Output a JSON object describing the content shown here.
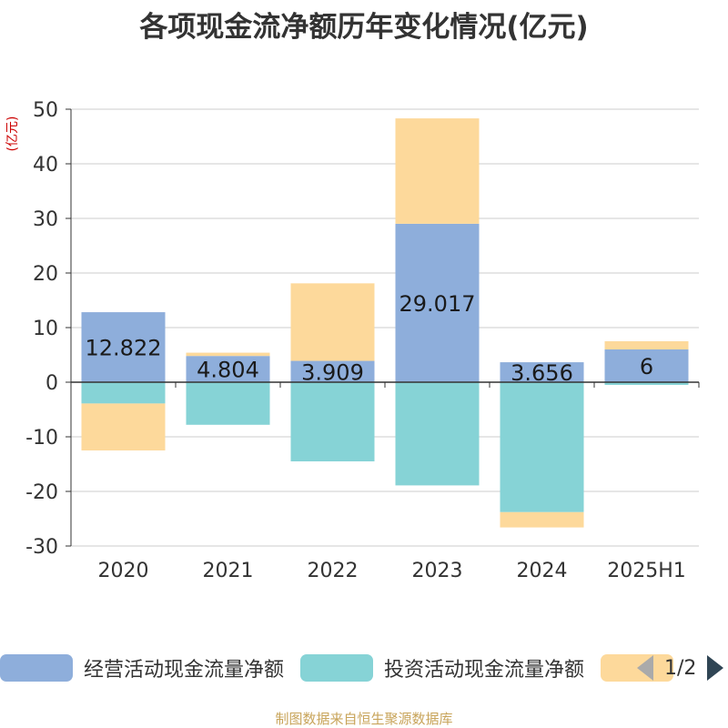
{
  "title": "各项现金流净额历年变化情况(亿元)",
  "unit_label": "(亿元)",
  "legend": {
    "items": [
      {
        "label": "经营活动现金流量净额",
        "color": "#8eaedb"
      },
      {
        "label": "投资活动现金流量净额",
        "color": "#86d3d6"
      },
      {
        "label": "",
        "color": "#fdd99b"
      }
    ],
    "page": "1/2"
  },
  "source": "制图数据来自恒生聚源数据库",
  "chart_data": {
    "type": "bar",
    "stacked": true,
    "categories": [
      "2020",
      "2021",
      "2022",
      "2023",
      "2024",
      "2025H1"
    ],
    "series": [
      {
        "name": "经营活动现金流量净额",
        "color": "#8eaedb",
        "values": [
          12.822,
          4.804,
          3.909,
          29.017,
          3.656,
          6
        ],
        "labels": [
          "12.822",
          "4.804",
          "3.909",
          "29.017",
          "3.656",
          "6"
        ]
      },
      {
        "name": "投资活动现金流量净额",
        "color": "#86d3d6",
        "values": [
          -3.9,
          -7.8,
          -14.5,
          -18.9,
          -23.8,
          -0.5
        ]
      },
      {
        "color": "#fdd99b",
        "values": [
          -8.6,
          0.6,
          14.2,
          19.3,
          -2.8,
          1.5
        ]
      }
    ],
    "ylim": [
      -30,
      50
    ],
    "yticks": [
      -30,
      -20,
      -10,
      0,
      10,
      20,
      30,
      40,
      50
    ],
    "grid": true,
    "legend_position": "bottom"
  }
}
